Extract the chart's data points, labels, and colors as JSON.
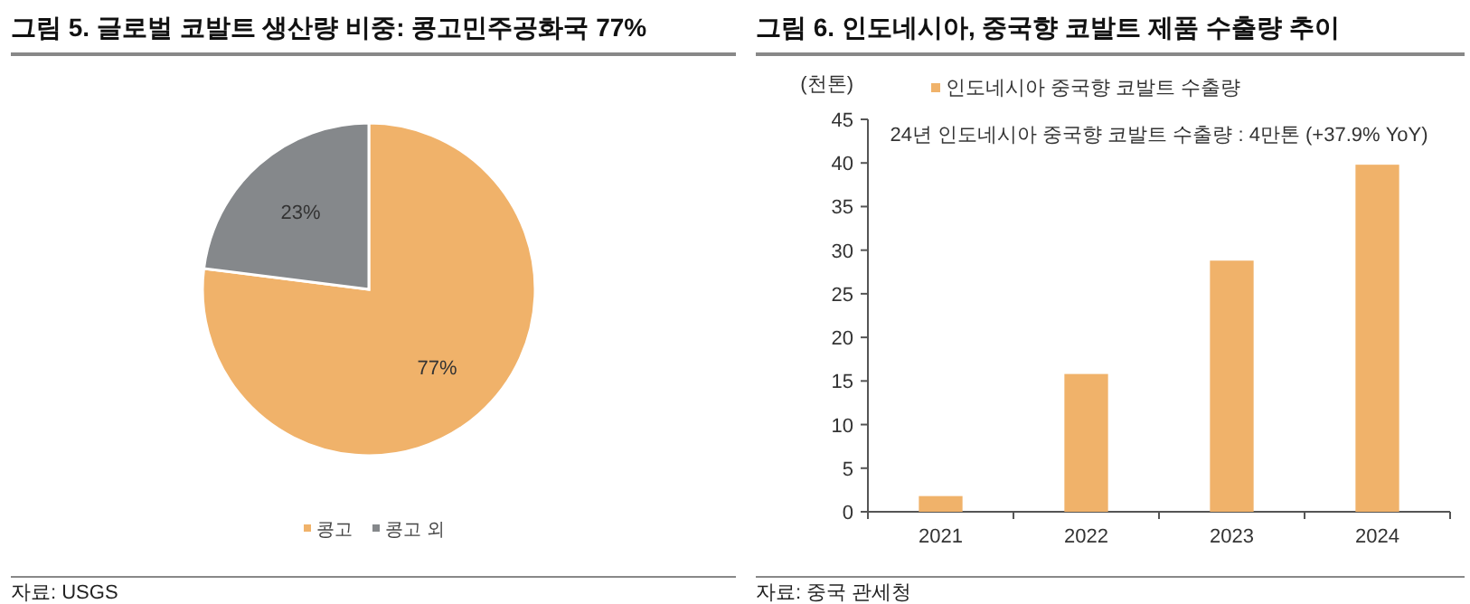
{
  "chart_data": [
    {
      "type": "pie",
      "title": "그림 5. 글로벌 코발트 생산량 비중: 콩고민주공화국 77%",
      "categories": [
        "콩고",
        "콩고 외"
      ],
      "values": [
        77,
        23
      ],
      "colors": [
        "#f0b26a",
        "#85888b"
      ],
      "value_labels": [
        "77%",
        "23%"
      ],
      "legend": "bottom",
      "annotations": [
        "자료: USGS"
      ]
    },
    {
      "type": "bar",
      "title": "그림 6. 인도네시아, 중국향 코발트 제품 수출량 추이",
      "ylabel": "(천톤)",
      "categories": [
        "2021",
        "2022",
        "2023",
        "2024"
      ],
      "series": [
        {
          "name": "인도네시아 중국향 코발트 수출량",
          "color": "#f0b26a",
          "values": [
            1.8,
            15.8,
            28.8,
            39.8
          ]
        }
      ],
      "ylim": [
        0,
        45
      ],
      "yticks": [
        0,
        5,
        10,
        15,
        20,
        25,
        30,
        35,
        40,
        45
      ],
      "legend": "top",
      "annotations": [
        "24년 인도네시아 중국향 코발트 수출량 : 4만톤 (+37.9% YoY)",
        "자료: 중국 관세청"
      ]
    }
  ]
}
